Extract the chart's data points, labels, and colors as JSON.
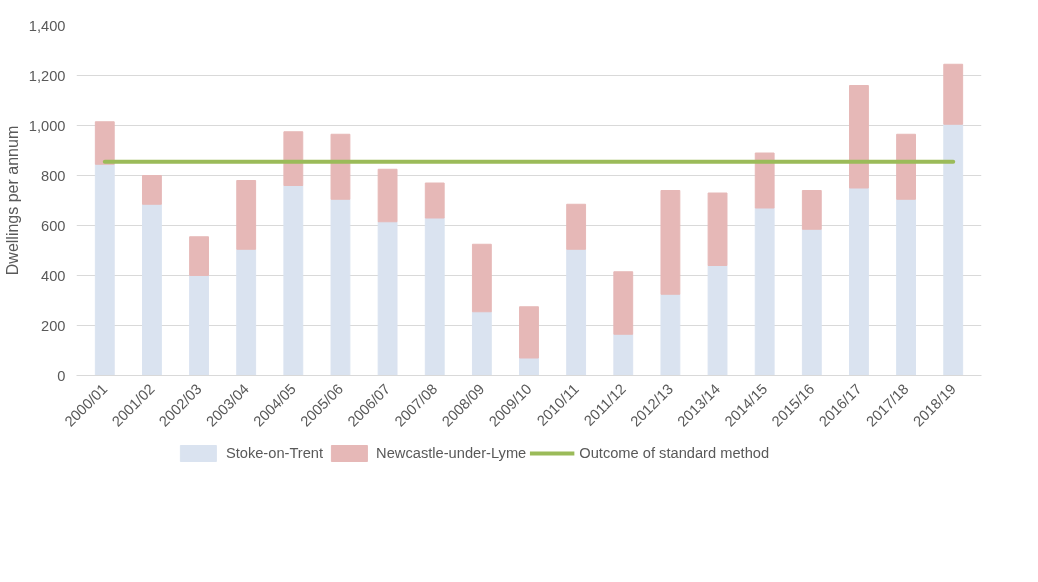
{
  "chart_data": {
    "type": "bar",
    "stacked": true,
    "ylabel": "Dwellings per annum",
    "categories": [
      "2000/01",
      "2001/02",
      "2002/03",
      "2003/04",
      "2004/05",
      "2005/06",
      "2006/07",
      "2007/08",
      "2008/09",
      "2009/10",
      "2010/11",
      "2011/12",
      "2012/13",
      "2013/14",
      "2014/15",
      "2015/16",
      "2016/17",
      "2017/18",
      "2018/19"
    ],
    "series": [
      {
        "name": "Stoke-on-Trent",
        "color": "#dae3f0",
        "values": [
          845,
          685,
          400,
          505,
          760,
          705,
          615,
          630,
          255,
          70,
          505,
          165,
          325,
          440,
          670,
          585,
          750,
          705,
          1005
        ]
      },
      {
        "name": "Newcastle-under-Lyme",
        "color": "#e6b8b7",
        "values": [
          170,
          115,
          155,
          275,
          215,
          260,
          210,
          140,
          270,
          205,
          180,
          250,
          415,
          290,
          220,
          155,
          410,
          260,
          240
        ]
      },
      {
        "name": "Outcome of standard method",
        "type": "line",
        "color": "#9bbb59",
        "values": [
          855,
          855,
          855,
          855,
          855,
          855,
          855,
          855,
          855,
          855,
          855,
          855,
          855,
          855,
          855,
          855,
          855,
          855,
          855
        ]
      }
    ],
    "ylim": [
      0,
      1400
    ],
    "yticks": [
      {
        "value": 0,
        "label": "0"
      },
      {
        "value": 200,
        "label": "200"
      },
      {
        "value": 400,
        "label": "400"
      },
      {
        "value": 600,
        "label": "600"
      },
      {
        "value": 800,
        "label": "800"
      },
      {
        "value": 1000,
        "label": "1,000"
      },
      {
        "value": 1200,
        "label": "1,200"
      },
      {
        "value": 1400,
        "label": "1,400"
      }
    ],
    "grid": "y",
    "legend": "bottom"
  }
}
